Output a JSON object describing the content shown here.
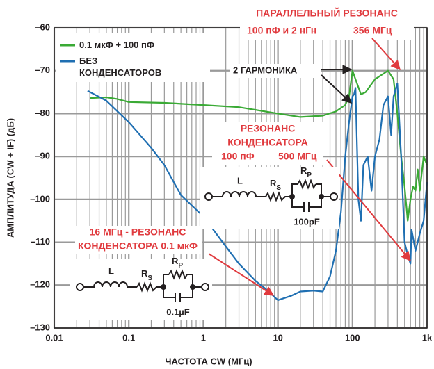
{
  "chart_data": {
    "type": "line",
    "x_label": "ЧАСТОТА CW (МГц)",
    "y_label": "АМПЛИТУДА (CW + IF) (дБ)",
    "log_x": true,
    "grid": true,
    "minor_grid": true,
    "xlim": [
      0.01,
      1000
    ],
    "xticks": [
      0.01,
      0.1,
      1,
      10,
      100,
      {
        "value": 1000,
        "label": "1k"
      }
    ],
    "ylim": [
      -130,
      -60
    ],
    "yticks": [
      {
        "value": -130,
        "label": "–130"
      },
      {
        "value": -120,
        "label": "–120"
      },
      {
        "value": -110,
        "label": "–110"
      },
      {
        "value": -100,
        "label": "–100"
      },
      {
        "value": -90,
        "label": "–90"
      },
      {
        "value": -80,
        "label": "–80"
      },
      {
        "value": -70,
        "label": "–70"
      },
      {
        "value": -60,
        "label": "–60"
      }
    ],
    "legend": "top-left",
    "series": [
      {
        "name": "0.1 мкФ + 100 пФ",
        "color": "#3aaa35",
        "x": [
          0.03,
          0.05,
          0.07,
          0.1,
          0.3,
          1,
          3,
          10,
          20,
          40,
          60,
          80,
          90,
          100,
          110,
          130,
          150,
          200,
          300,
          356,
          400,
          450,
          500,
          550,
          600,
          650,
          700,
          750,
          800,
          900,
          1000
        ],
        "values": [
          -76.4,
          -76.2,
          -76.6,
          -77.3,
          -77.5,
          -78,
          -78.5,
          -80,
          -80.8,
          -80.5,
          -79.5,
          -78,
          -76,
          -70,
          -72,
          -75.5,
          -75,
          -72,
          -70,
          -72,
          -80,
          -90,
          -97,
          -105,
          -100,
          -97,
          -98,
          -93,
          -98,
          -90,
          -92
        ]
      },
      {
        "name": "БЕЗ\nКОНДЕНСАТОРОВ",
        "color": "#1f6fb2",
        "x": [
          0.028,
          0.05,
          0.1,
          0.2,
          0.3,
          0.5,
          1,
          2,
          3,
          5,
          7,
          10,
          15,
          20,
          30,
          40,
          50,
          60,
          70,
          80,
          90,
          100,
          105,
          110,
          112,
          120,
          130,
          140,
          160,
          180,
          200,
          230,
          260,
          300,
          330,
          356,
          400,
          420,
          450,
          500,
          550,
          600,
          620,
          700,
          800,
          900,
          1000
        ],
        "values": [
          -74.7,
          -77,
          -82,
          -88,
          -92,
          -99,
          -104,
          -111,
          -115,
          -119,
          -121,
          -123.5,
          -122.5,
          -121.5,
          -121.3,
          -121.5,
          -118,
          -112,
          -103,
          -90,
          -82,
          -76,
          -75.5,
          -74,
          -80,
          -100,
          -105,
          -92,
          -90,
          -98,
          -90,
          -86,
          -78,
          -76,
          -85,
          -76,
          -73,
          -80,
          -90,
          -110,
          -113,
          -115,
          -107,
          -112,
          -108,
          -105,
          -96
        ]
      }
    ],
    "annotations": {
      "parallel_title": "ПАРАЛЛЕЛЬНЫЙ РЕЗОНАНС",
      "parallel_values": "100 пФ и 2 нГн",
      "parallel_freq": "356 МГц",
      "harmonic": "2 ГАРМОНИКА",
      "cap_res_1": "РЕЗОНАНС",
      "cap_res_2": "КОНДЕНСАТОРА",
      "cap_res_value": "100 пФ",
      "cap_res_freq": "500 МГц",
      "big_cap_1": "16 МГц - РЕЗОНАНС",
      "big_cap_2": "КОНДЕНСАТОРА 0.1 мкФ"
    },
    "circuits": [
      {
        "inductor": "L",
        "resistor": "R",
        "resistor_sub": "S",
        "parallel": "R",
        "parallel_sub": "P",
        "capacitor": "100pF"
      },
      {
        "inductor": "L",
        "resistor": "R",
        "resistor_sub": "S",
        "parallel": "R",
        "parallel_sub": "P",
        "capacitor": "0.1µF"
      }
    ]
  }
}
